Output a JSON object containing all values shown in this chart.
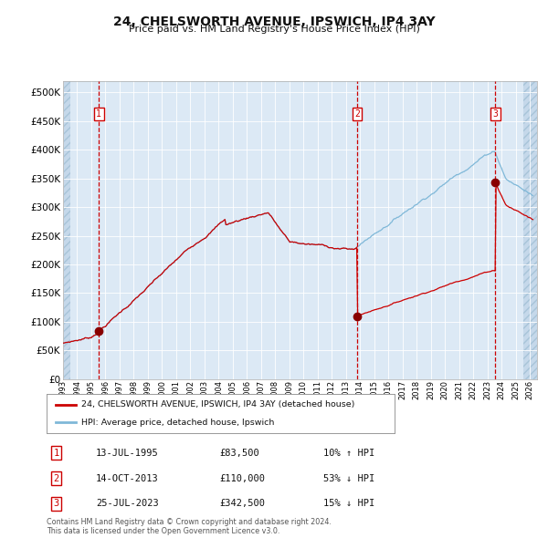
{
  "title": "24, CHELSWORTH AVENUE, IPSWICH, IP4 3AY",
  "subtitle": "Price paid vs. HM Land Registry's House Price Index (HPI)",
  "background_color": "#dce9f5",
  "grid_color": "#ffffff",
  "ylim": [
    0,
    520000
  ],
  "yticks": [
    0,
    50000,
    100000,
    150000,
    200000,
    250000,
    300000,
    350000,
    400000,
    450000,
    500000
  ],
  "ytick_labels": [
    "£0",
    "£50K",
    "£100K",
    "£150K",
    "£200K",
    "£250K",
    "£300K",
    "£350K",
    "£400K",
    "£450K",
    "£500K"
  ],
  "sale_dates_num": [
    1995.53,
    2013.79,
    2023.56
  ],
  "sale_prices": [
    83500,
    110000,
    342500
  ],
  "sale_labels": [
    "1",
    "2",
    "3"
  ],
  "sale_date_strs": [
    "13-JUL-1995",
    "14-OCT-2013",
    "25-JUL-2023"
  ],
  "sale_pct": [
    "10% ↑ HPI",
    "53% ↓ HPI",
    "15% ↓ HPI"
  ],
  "legend_house": "24, CHELSWORTH AVENUE, IPSWICH, IP4 3AY (detached house)",
  "legend_hpi": "HPI: Average price, detached house, Ipswich",
  "footer": "Contains HM Land Registry data © Crown copyright and database right 2024.\nThis data is licensed under the Open Government Licence v3.0.",
  "house_line_color": "#cc0000",
  "hpi_line_color": "#7fb8d8",
  "dot_color": "#880000",
  "dashed_color": "#cc0000",
  "xlim_left": 1993.0,
  "xlim_right": 2026.5,
  "hatch_left_end": 1993.5,
  "hatch_right_start": 2025.5
}
